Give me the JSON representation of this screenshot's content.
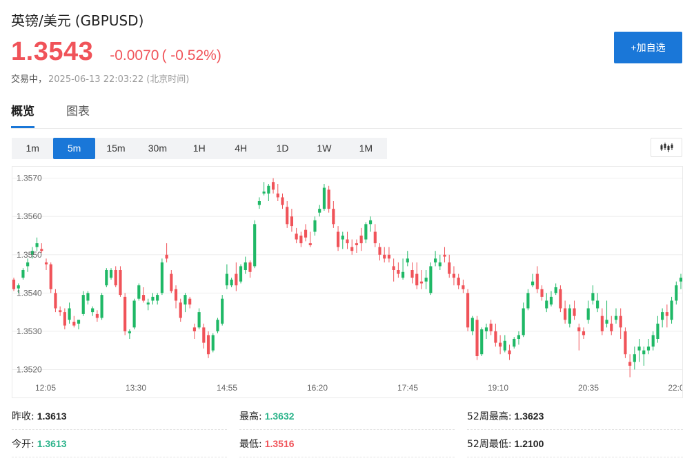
{
  "header": {
    "name": "英镑/美元",
    "code": "(GBPUSD)",
    "price": "1.3543",
    "change": "-0.0070",
    "change_pct": "( -0.52%)",
    "status": "交易中，",
    "time": "2025-06-13 22:03:22 (北京时间)",
    "add_watchlist": "+加自选"
  },
  "tabs": [
    {
      "label": "概览",
      "active": true
    },
    {
      "label": "图表",
      "active": false
    }
  ],
  "periods": [
    {
      "label": "1m",
      "active": false
    },
    {
      "label": "5m",
      "active": true
    },
    {
      "label": "15m",
      "active": false
    },
    {
      "label": "30m",
      "active": false
    },
    {
      "label": "1H",
      "active": false
    },
    {
      "label": "4H",
      "active": false
    },
    {
      "label": "1D",
      "active": false
    },
    {
      "label": "1W",
      "active": false
    },
    {
      "label": "1M",
      "active": false
    }
  ],
  "icons": {
    "chart_type": "candlestick-icon"
  },
  "colors": {
    "up": "#1fb866",
    "down": "#f05359",
    "accent": "#1a77d8",
    "up_text": "#2bb38a",
    "down_text": "#f05359"
  },
  "chart_data": {
    "type": "candlestick",
    "y_ticks": [
      "1.3570",
      "1.3560",
      "1.3550",
      "1.3540",
      "1.3530",
      "1.3520"
    ],
    "y_tick_values": [
      1.357,
      1.356,
      1.355,
      1.354,
      1.353,
      1.352
    ],
    "x_ticks": [
      "12:05",
      "13:30",
      "14:55",
      "16:20",
      "17:45",
      "19:10",
      "20:35",
      "22:0"
    ],
    "ylim": [
      1.35172,
      1.3573
    ],
    "grid": true,
    "candles": [
      [
        1.35435,
        1.3544,
        1.35405,
        1.3541
      ],
      [
        1.35412,
        1.35425,
        1.354,
        1.3542
      ],
      [
        1.3544,
        1.35465,
        1.35435,
        1.3546
      ],
      [
        1.3547,
        1.3549,
        1.35455,
        1.3548
      ],
      [
        1.355,
        1.3552,
        1.3549,
        1.3551
      ],
      [
        1.3552,
        1.35545,
        1.3551,
        1.3553
      ],
      [
        1.35515,
        1.3553,
        1.35505,
        1.3551
      ],
      [
        1.3548,
        1.3549,
        1.3546,
        1.35475
      ],
      [
        1.35475,
        1.3548,
        1.354,
        1.3541
      ],
      [
        1.354,
        1.3541,
        1.3535,
        1.3536
      ],
      [
        1.35355,
        1.35365,
        1.3534,
        1.3535
      ],
      [
        1.3535,
        1.3536,
        1.35305,
        1.35315
      ],
      [
        1.3533,
        1.35375,
        1.3532,
        1.3536
      ],
      [
        1.35325,
        1.3534,
        1.3531,
        1.35315
      ],
      [
        1.3532,
        1.3533,
        1.35305,
        1.3533
      ],
      [
        1.35345,
        1.35405,
        1.3534,
        1.35395
      ],
      [
        1.3538,
        1.35405,
        1.3537,
        1.354
      ],
      [
        1.3535,
        1.35365,
        1.3534,
        1.3536
      ],
      [
        1.35345,
        1.35355,
        1.35325,
        1.35335
      ],
      [
        1.35335,
        1.354,
        1.3533,
        1.35395
      ],
      [
        1.3542,
        1.35465,
        1.35415,
        1.3546
      ],
      [
        1.3544,
        1.35465,
        1.35435,
        1.3546
      ],
      [
        1.3546,
        1.3547,
        1.35415,
        1.3542
      ],
      [
        1.3546,
        1.3547,
        1.3539,
        1.35395
      ],
      [
        1.3539,
        1.354,
        1.3529,
        1.353
      ],
      [
        1.35295,
        1.35305,
        1.3528,
        1.353
      ],
      [
        1.3531,
        1.35385,
        1.35305,
        1.3538
      ],
      [
        1.35385,
        1.35425,
        1.3538,
        1.3542
      ],
      [
        1.35395,
        1.35415,
        1.35375,
        1.3538
      ],
      [
        1.3537,
        1.35385,
        1.35355,
        1.35375
      ],
      [
        1.3538,
        1.354,
        1.3537,
        1.3539
      ],
      [
        1.3538,
        1.354,
        1.3537,
        1.35395
      ],
      [
        1.354,
        1.3549,
        1.35395,
        1.3548
      ],
      [
        1.355,
        1.3553,
        1.3548,
        1.3549
      ],
      [
        1.3545,
        1.3546,
        1.354,
        1.35405
      ],
      [
        1.3541,
        1.3542,
        1.3536,
        1.3538
      ],
      [
        1.35375,
        1.35385,
        1.35325,
        1.35335
      ],
      [
        1.3537,
        1.354,
        1.3535,
        1.35395
      ],
      [
        1.35385,
        1.3539,
        1.3536,
        1.3537
      ],
      [
        1.3531,
        1.3532,
        1.3528,
        1.353
      ],
      [
        1.3531,
        1.3536,
        1.35305,
        1.3535
      ],
      [
        1.3531,
        1.3532,
        1.35255,
        1.3527
      ],
      [
        1.3529,
        1.353,
        1.3523,
        1.3524
      ],
      [
        1.3525,
        1.35295,
        1.35245,
        1.3529
      ],
      [
        1.353,
        1.35335,
        1.35295,
        1.3533
      ],
      [
        1.3532,
        1.35395,
        1.35315,
        1.35385
      ],
      [
        1.3542,
        1.35475,
        1.3541,
        1.3545
      ],
      [
        1.3542,
        1.3544,
        1.35415,
        1.35435
      ],
      [
        1.3545,
        1.3548,
        1.35405,
        1.3542
      ],
      [
        1.3543,
        1.35475,
        1.35425,
        1.3547
      ],
      [
        1.3546,
        1.35495,
        1.3545,
        1.3548
      ],
      [
        1.3548,
        1.35485,
        1.3544,
        1.35455
      ],
      [
        1.3547,
        1.3559,
        1.35465,
        1.3558
      ],
      [
        1.3563,
        1.3565,
        1.3562,
        1.3564
      ],
      [
        1.3566,
        1.3569,
        1.35655,
        1.35665
      ],
      [
        1.3566,
        1.35685,
        1.3564,
        1.3568
      ],
      [
        1.3569,
        1.357,
        1.3566,
        1.3567
      ],
      [
        1.3566,
        1.35685,
        1.3564,
        1.3565
      ],
      [
        1.3565,
        1.3566,
        1.3562,
        1.3563
      ],
      [
        1.35625,
        1.3564,
        1.3557,
        1.3558
      ],
      [
        1.356,
        1.3562,
        1.3556,
        1.35575
      ],
      [
        1.35555,
        1.3557,
        1.3553,
        1.3554
      ],
      [
        1.3555,
        1.3556,
        1.3552,
        1.3553
      ],
      [
        1.35565,
        1.3558,
        1.35535,
        1.35545
      ],
      [
        1.3553,
        1.3556,
        1.3552,
        1.35525
      ],
      [
        1.3556,
        1.356,
        1.3555,
        1.3559
      ],
      [
        1.3561,
        1.3563,
        1.356,
        1.3562
      ],
      [
        1.3562,
        1.35685,
        1.35615,
        1.35675
      ],
      [
        1.3567,
        1.3568,
        1.3561,
        1.3562
      ],
      [
        1.3562,
        1.3564,
        1.3557,
        1.3558
      ],
      [
        1.3556,
        1.35575,
        1.3551,
        1.3552
      ],
      [
        1.3554,
        1.3556,
        1.35515,
        1.3555
      ],
      [
        1.3554,
        1.3556,
        1.35515,
        1.3553
      ],
      [
        1.3552,
        1.3554,
        1.355,
        1.3551
      ],
      [
        1.3553,
        1.3554,
        1.35505,
        1.35525
      ],
      [
        1.3555,
        1.3557,
        1.3551,
        1.3553
      ],
      [
        1.3554,
        1.35585,
        1.3553,
        1.3558
      ],
      [
        1.3558,
        1.356,
        1.3556,
        1.3559
      ],
      [
        1.3556,
        1.3558,
        1.3552,
        1.3553
      ],
      [
        1.3552,
        1.3553,
        1.35485,
        1.355
      ],
      [
        1.355,
        1.3552,
        1.3548,
        1.3549
      ],
      [
        1.355,
        1.3552,
        1.3548,
        1.3549
      ],
      [
        1.3547,
        1.3549,
        1.3543,
        1.3546
      ],
      [
        1.3546,
        1.3548,
        1.3544,
        1.3545
      ],
      [
        1.3544,
        1.3549,
        1.35435,
        1.35455
      ],
      [
        1.3548,
        1.3551,
        1.3547,
        1.3549
      ],
      [
        1.3546,
        1.3548,
        1.35425,
        1.3544
      ],
      [
        1.3545,
        1.3548,
        1.3541,
        1.3542
      ],
      [
        1.3543,
        1.3546,
        1.3541,
        1.35425
      ],
      [
        1.3543,
        1.3546,
        1.3541,
        1.3544
      ],
      [
        1.354,
        1.3548,
        1.35395,
        1.3547
      ],
      [
        1.3548,
        1.3551,
        1.3547,
        1.3549
      ],
      [
        1.3547,
        1.355,
        1.3546,
        1.3548
      ],
      [
        1.355,
        1.3552,
        1.3548,
        1.35495
      ],
      [
        1.3548,
        1.355,
        1.3544,
        1.3545
      ],
      [
        1.3545,
        1.3547,
        1.3542,
        1.3544
      ],
      [
        1.3544,
        1.3545,
        1.3541,
        1.3542
      ],
      [
        1.3542,
        1.35435,
        1.354,
        1.3541
      ],
      [
        1.354,
        1.3541,
        1.353,
        1.3531
      ],
      [
        1.353,
        1.3534,
        1.3529,
        1.35335
      ],
      [
        1.3533,
        1.3534,
        1.35225,
        1.35235
      ],
      [
        1.3524,
        1.3531,
        1.35235,
        1.35305
      ],
      [
        1.353,
        1.3532,
        1.3528,
        1.3531
      ],
      [
        1.3532,
        1.3533,
        1.3529,
        1.353
      ],
      [
        1.353,
        1.3532,
        1.3526,
        1.3527
      ],
      [
        1.3527,
        1.3529,
        1.3524,
        1.3526
      ],
      [
        1.3525,
        1.3529,
        1.35245,
        1.35275
      ],
      [
        1.3525,
        1.35265,
        1.35225,
        1.3524
      ],
      [
        1.3526,
        1.35285,
        1.35255,
        1.3528
      ],
      [
        1.3528,
        1.353,
        1.35265,
        1.3529
      ],
      [
        1.3529,
        1.35375,
        1.35285,
        1.3536
      ],
      [
        1.3536,
        1.3541,
        1.35355,
        1.354
      ],
      [
        1.3542,
        1.3545,
        1.35415,
        1.3543
      ],
      [
        1.3545,
        1.3547,
        1.354,
        1.3541
      ],
      [
        1.3541,
        1.3542,
        1.3538,
        1.3539
      ],
      [
        1.3536,
        1.354,
        1.3535,
        1.3538
      ],
      [
        1.3537,
        1.35405,
        1.35365,
        1.3539
      ],
      [
        1.354,
        1.35425,
        1.35395,
        1.35415
      ],
      [
        1.3541,
        1.3542,
        1.3535,
        1.3536
      ],
      [
        1.3536,
        1.3538,
        1.3532,
        1.3533
      ],
      [
        1.3532,
        1.3537,
        1.3531,
        1.3536
      ],
      [
        1.3536,
        1.3538,
        1.3533,
        1.3534
      ],
      [
        1.3531,
        1.3532,
        1.3525,
        1.353
      ],
      [
        1.353,
        1.3531,
        1.3528,
        1.3529
      ],
      [
        1.3533,
        1.3538,
        1.3532,
        1.3536
      ],
      [
        1.3538,
        1.3542,
        1.3537,
        1.354
      ],
      [
        1.3536,
        1.354,
        1.3535,
        1.3538
      ],
      [
        1.3534,
        1.3536,
        1.3529,
        1.353
      ],
      [
        1.3532,
        1.3538,
        1.3531,
        1.3533
      ],
      [
        1.3532,
        1.3534,
        1.3529,
        1.353
      ],
      [
        1.3533,
        1.3536,
        1.3532,
        1.3534
      ],
      [
        1.3534,
        1.3536,
        1.3528,
        1.3531
      ],
      [
        1.353,
        1.3531,
        1.3523,
        1.3524
      ],
      [
        1.3522,
        1.3524,
        1.3518,
        1.3521
      ],
      [
        1.3522,
        1.3526,
        1.352,
        1.3524
      ],
      [
        1.3525,
        1.3528,
        1.3522,
        1.3526
      ],
      [
        1.3524,
        1.3526,
        1.3521,
        1.3525
      ],
      [
        1.3525,
        1.3528,
        1.3524,
        1.3526
      ],
      [
        1.3526,
        1.353,
        1.3525,
        1.3529
      ],
      [
        1.3528,
        1.3534,
        1.3527,
        1.3532
      ],
      [
        1.3533,
        1.3536,
        1.3531,
        1.3535
      ],
      [
        1.3535,
        1.3537,
        1.3531,
        1.3534
      ],
      [
        1.3533,
        1.3539,
        1.3532,
        1.3538
      ],
      [
        1.3538,
        1.3543,
        1.3537,
        1.3542
      ],
      [
        1.3543,
        1.3545,
        1.3541,
        1.3544
      ]
    ]
  },
  "stats": [
    {
      "label": "昨收:",
      "value": "1.3613",
      "color": "#222222"
    },
    {
      "label": "最高:",
      "value": "1.3632",
      "color": "#2bb38a"
    },
    {
      "label": "52周最高:",
      "value": "1.3623",
      "color": "#222222"
    },
    {
      "label": "今开:",
      "value": "1.3613",
      "color": "#2bb38a"
    },
    {
      "label": "最低:",
      "value": "1.3516",
      "color": "#f05359"
    },
    {
      "label": "52周最低:",
      "value": "1.2100",
      "color": "#222222"
    }
  ]
}
